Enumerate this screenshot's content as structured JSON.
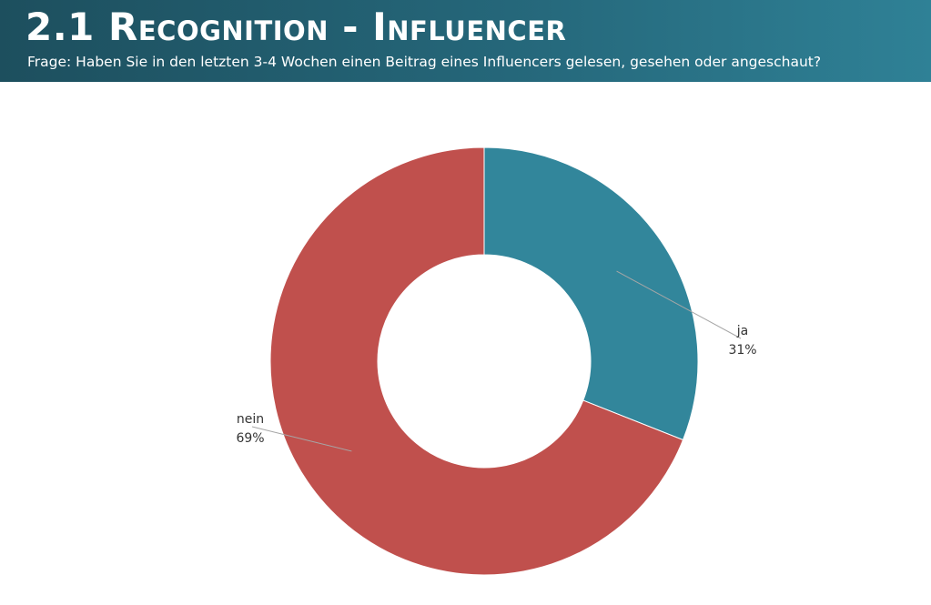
{
  "header": {
    "title": "2.1 Recognition - Influencer",
    "subtitle": "Frage: Haben Sie in den letzten 3-4 Wochen einen Beitrag eines Influencers gelesen, gesehen oder angeschaut?"
  },
  "chart_data": {
    "type": "pie",
    "variant": "donut",
    "categories": [
      "ja",
      "nein"
    ],
    "values": [
      31,
      69
    ],
    "value_labels": [
      "31%",
      "69%"
    ],
    "colors": [
      "#32869b",
      "#c0504d"
    ],
    "legend": "none"
  }
}
